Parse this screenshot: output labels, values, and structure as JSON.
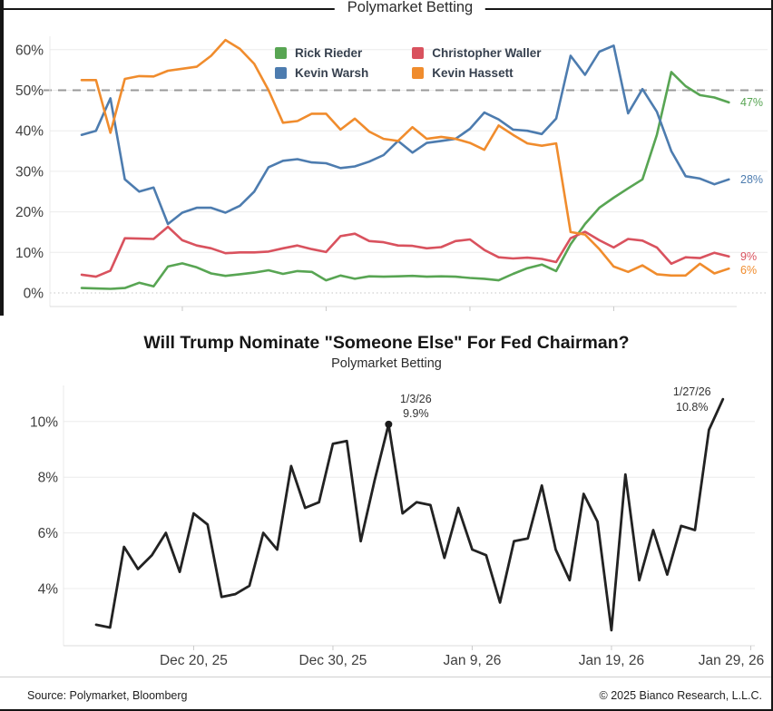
{
  "chart_data": [
    {
      "type": "line",
      "subtitle": "Polymarket Betting",
      "ylabel_format": "percent",
      "ylim": [
        0,
        65
      ],
      "yticks": [
        0,
        10,
        20,
        30,
        40,
        50,
        60
      ],
      "reference_line": 50,
      "grid": true,
      "legend_position": "top-center",
      "x_tick_indices": [
        7,
        17,
        27,
        37
      ],
      "x_tick_labels": [
        "",
        "",
        "",
        ""
      ],
      "series": [
        {
          "name": "Rick Rieder",
          "color": "#58a553",
          "end_label": "47%",
          "values": [
            1.2,
            1.1,
            1.0,
            1.2,
            2.5,
            1.6,
            6.5,
            7.3,
            6.3,
            4.8,
            4.2,
            4.6,
            5.0,
            5.6,
            4.7,
            5.4,
            5.2,
            3.1,
            4.3,
            3.5,
            4.1,
            4.0,
            4.1,
            4.2,
            4.0,
            4.1,
            4.0,
            3.7,
            3.5,
            3.1,
            4.7,
            6.1,
            7.0,
            5.4,
            12.0,
            17.0,
            21.0,
            23.5,
            25.8,
            28.0,
            39.0,
            54.5,
            51.0,
            48.8,
            48.2,
            47.0
          ]
        },
        {
          "name": "Kevin Warsh",
          "color": "#4d7caf",
          "end_label": "28%",
          "values": [
            39,
            40,
            48,
            28,
            25,
            26,
            17,
            19.8,
            21,
            21,
            19.8,
            21.5,
            25,
            31,
            32.6,
            33,
            32.2,
            32,
            30.8,
            31.2,
            32.4,
            34,
            37.5,
            34.6,
            37,
            37.5,
            38,
            40.5,
            44.5,
            42.8,
            40.3,
            40,
            39.2,
            43,
            58.5,
            53.8,
            59.5,
            61,
            44.3,
            50.3,
            44.7,
            35,
            28.8,
            28.2,
            26.8,
            28
          ]
        },
        {
          "name": "Christopher Waller",
          "color": "#d9525e",
          "end_label": "9%",
          "values": [
            4.5,
            4.0,
            5.5,
            13.5,
            13.4,
            13.3,
            16.3,
            13.0,
            11.7,
            11.0,
            9.8,
            10.0,
            10.0,
            10.2,
            11.0,
            11.7,
            10.8,
            10.1,
            14.0,
            14.6,
            12.8,
            12.5,
            11.7,
            11.6,
            11.0,
            11.3,
            12.8,
            13.2,
            10.6,
            8.8,
            8.5,
            8.7,
            8.4,
            7.6,
            13.5,
            15.1,
            13.0,
            11.2,
            13.3,
            12.9,
            11.2,
            7.2,
            8.8,
            8.6,
            9.9,
            9.0
          ]
        },
        {
          "name": "Kevin Hassett",
          "color": "#f08c2d",
          "end_label": "6%",
          "values": [
            52.5,
            52.5,
            39.5,
            52.8,
            53.5,
            53.4,
            54.8,
            55.3,
            55.8,
            58.5,
            62.4,
            60.2,
            56.5,
            50.0,
            42.0,
            42.4,
            44.2,
            44.2,
            40.3,
            43.0,
            39.8,
            38.0,
            37.5,
            40.9,
            38.0,
            38.5,
            38.0,
            37.0,
            35.3,
            41.3,
            39.0,
            36.9,
            36.3,
            36.9,
            15.0,
            14.4,
            10.8,
            6.5,
            5.2,
            6.8,
            4.6,
            4.3,
            4.3,
            7.2,
            4.8,
            6.0
          ]
        }
      ]
    },
    {
      "type": "line",
      "title": "Will Trump Nominate \"Someone Else\" For Fed Chairman?",
      "subtitle": "Polymarket Betting",
      "ylabel_format": "percent",
      "ylim": [
        1.8,
        11.6
      ],
      "yticks": [
        4,
        6,
        8,
        10
      ],
      "grid": true,
      "x_tick_indices": [
        7,
        17,
        27,
        37,
        47
      ],
      "x_tick_labels": [
        "Dec 20, 25",
        "Dec 30, 25",
        "Jan 9, 26",
        "Jan 19, 26",
        "Jan 29, 26"
      ],
      "series": [
        {
          "name": "Someone Else",
          "color": "#222222",
          "end_label": "",
          "values": [
            2.7,
            2.6,
            5.5,
            4.7,
            5.2,
            6.0,
            4.6,
            6.7,
            6.3,
            3.7,
            3.8,
            4.1,
            6.0,
            5.4,
            8.4,
            6.9,
            7.1,
            9.2,
            9.3,
            5.7,
            7.9,
            9.9,
            6.7,
            7.1,
            7.0,
            5.1,
            6.9,
            5.4,
            5.2,
            3.5,
            5.7,
            5.8,
            7.7,
            5.4,
            4.3,
            7.4,
            6.4,
            2.5,
            8.1,
            4.3,
            6.1,
            4.5,
            6.25,
            6.1,
            9.7,
            10.8
          ]
        }
      ],
      "annotations": [
        {
          "index": 21,
          "value": 9.9,
          "line1": "1/3/26",
          "line2": "9.9%",
          "dot": true
        },
        {
          "index": 45,
          "value": 10.8,
          "line1": "1/27/26",
          "line2": "10.8%",
          "dot": false
        }
      ]
    }
  ],
  "footer": {
    "source": "Source: Polymarket, Bloomberg",
    "copyright": "© 2025 Bianco Research, L.L.C."
  }
}
